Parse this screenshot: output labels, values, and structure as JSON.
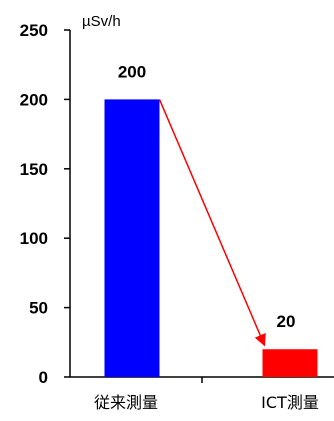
{
  "chart_data": {
    "type": "bar",
    "title": "",
    "unit_label": "µSv/h",
    "xlabel": "",
    "ylabel": "",
    "ylim": [
      0,
      250
    ],
    "yticks": [
      0,
      50,
      100,
      150,
      200,
      250
    ],
    "categories": [
      "従来測量",
      "ICT測量"
    ],
    "values": [
      200,
      20
    ],
    "data_labels": [
      "200",
      "20"
    ],
    "colors": [
      "#0000ff",
      "#ff0000"
    ],
    "grid": false,
    "legend": "none",
    "annotation": {
      "type": "arrow",
      "from_category": 0,
      "to_category": 1,
      "color": "#ff0000"
    }
  }
}
